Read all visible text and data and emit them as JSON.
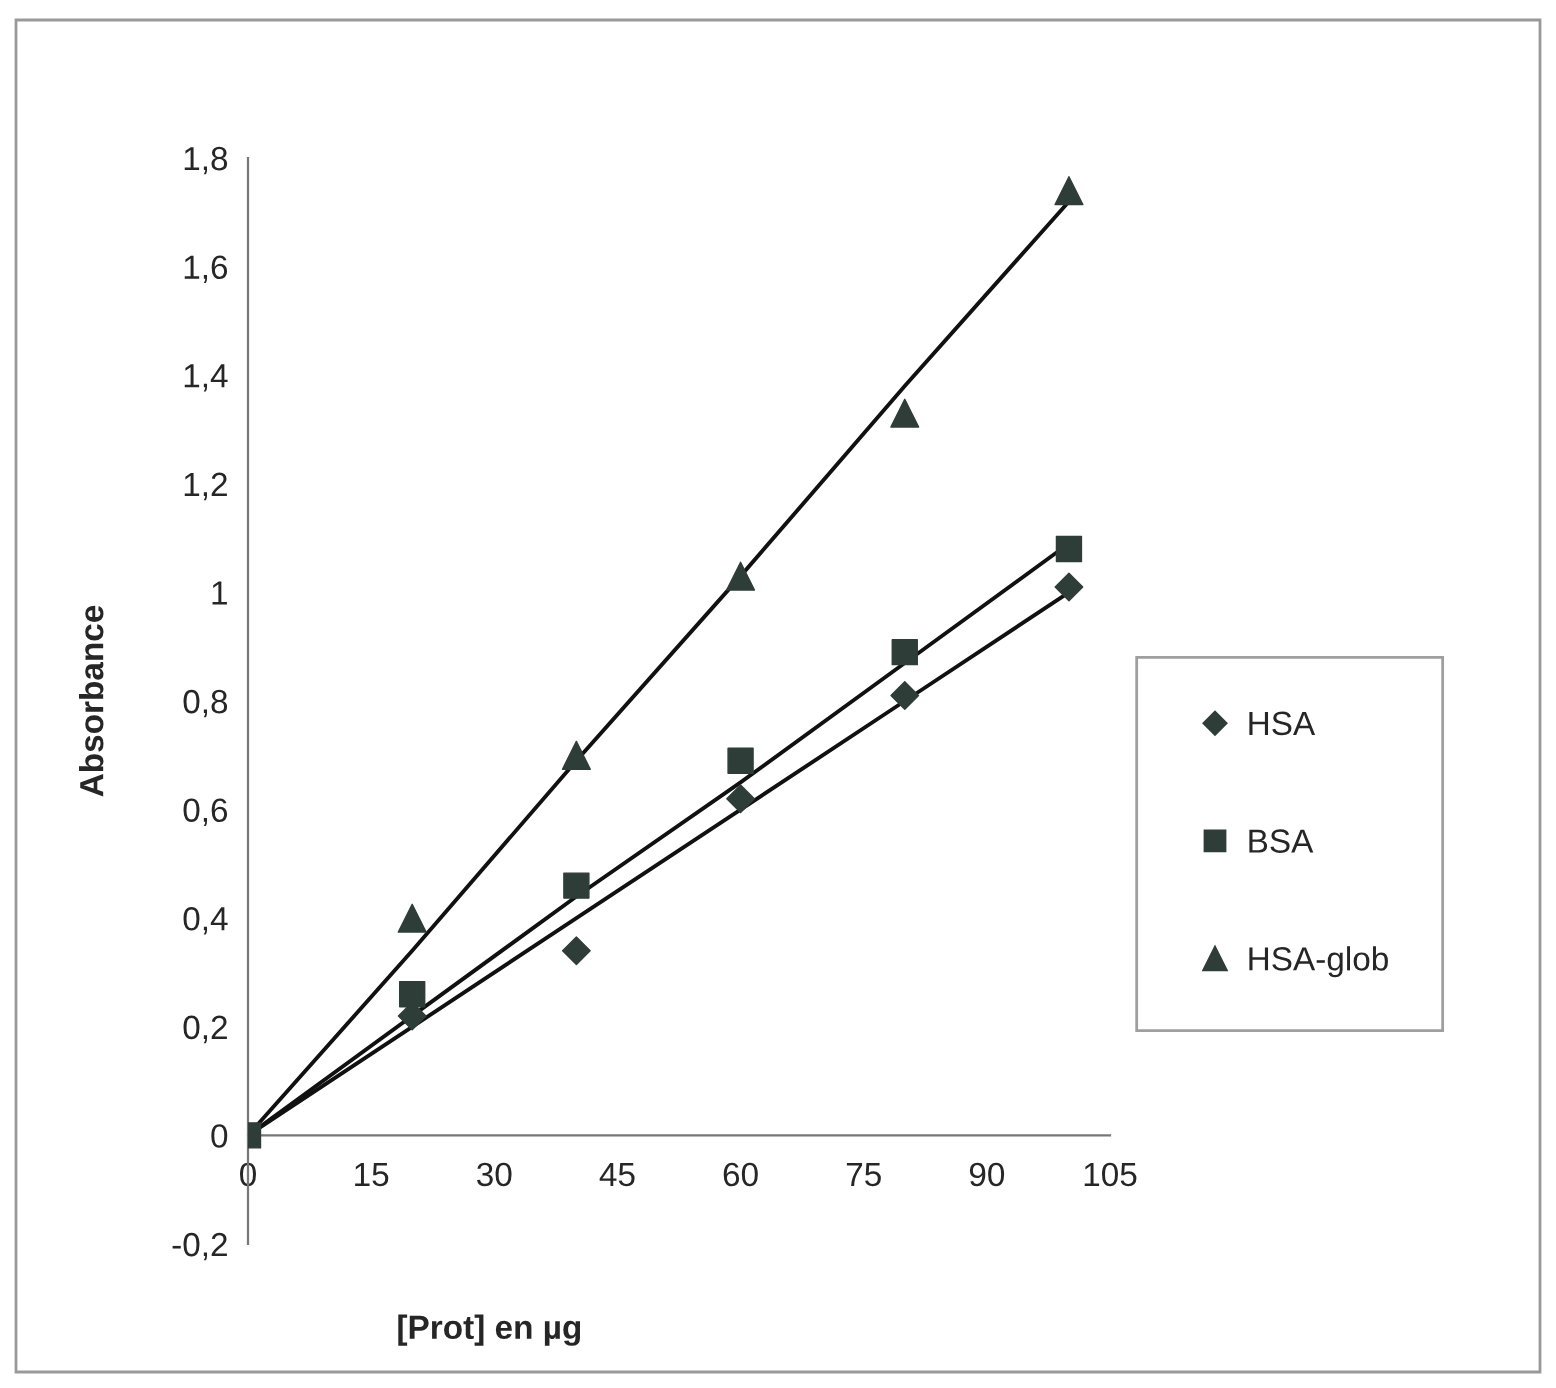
{
  "chart_data": {
    "type": "scatter",
    "xlabel": "[Prot] en µg",
    "ylabel": "Absorbance",
    "x": [
      0,
      20,
      40,
      60,
      80,
      100
    ],
    "series": [
      {
        "name": "HSA",
        "marker": "diamond",
        "color": "#2f3d38",
        "values": [
          null,
          0.22,
          0.34,
          0.62,
          0.81,
          1.01
        ]
      },
      {
        "name": "BSA",
        "marker": "square",
        "color": "#2f3d38",
        "values": [
          0,
          0.26,
          0.46,
          0.69,
          0.89,
          1.08
        ]
      },
      {
        "name": "HSA-glob",
        "marker": "triangle",
        "color": "#2f3d38",
        "values": [
          null,
          0.4,
          0.7,
          1.03,
          1.33,
          1.74
        ]
      },
      {
        "type": "line",
        "color": "#111111",
        "values": [
          0,
          0.2,
          0.4,
          0.6,
          0.8,
          1.0
        ]
      },
      {
        "type": "line",
        "color": "#111111",
        "values": [
          0,
          0.22,
          0.44,
          0.65,
          0.87,
          1.09
        ]
      },
      {
        "type": "line",
        "color": "#111111",
        "values": [
          0,
          0.34,
          0.69,
          1.03,
          1.38,
          1.72
        ]
      }
    ],
    "xlim": [
      0,
      105
    ],
    "xticks": [
      0,
      15,
      30,
      45,
      60,
      75,
      90,
      105
    ],
    "ylim": [
      -0.2,
      1.8
    ],
    "yticks": [
      {
        "value": -0.2,
        "label": "-0,2"
      },
      0,
      {
        "value": 0.2,
        "label": "0,2"
      },
      {
        "value": 0.4,
        "label": "0,4"
      },
      {
        "value": 0.6,
        "label": "0,6"
      },
      {
        "value": 0.8,
        "label": "0,8"
      },
      1,
      {
        "value": 1.2,
        "label": "1,2"
      },
      {
        "value": 1.4,
        "label": "1,4"
      },
      {
        "value": 1.6,
        "label": "1,6"
      },
      {
        "value": 1.8,
        "label": "1,8"
      }
    ],
    "legend": "right"
  }
}
